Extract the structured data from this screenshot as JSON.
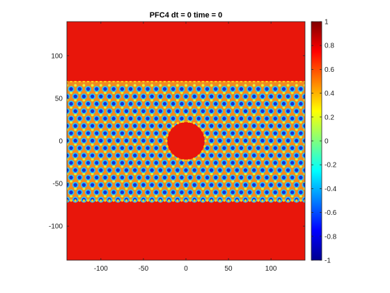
{
  "chart_data": {
    "type": "heatmap",
    "title": "PFC4   dt = 0   time = 0",
    "xlabel": "",
    "ylabel": "",
    "xlim": [
      -140,
      140
    ],
    "ylim": [
      -140,
      140
    ],
    "xticks": [
      -100,
      -50,
      0,
      50,
      100
    ],
    "yticks": [
      100,
      50,
      0,
      -50,
      -100
    ],
    "colorbar": {
      "limits": [
        -1,
        1
      ],
      "ticks": [
        "1",
        "0.8",
        "0.6",
        "0.4",
        "0.2",
        "0",
        "-0.2",
        "-0.4",
        "-0.6",
        "-0.8",
        "-1"
      ],
      "colormap": "jet"
    },
    "field": {
      "background_value": 0.9,
      "crystal_band_y": [
        -70,
        70
      ],
      "liquid_circle": {
        "center": [
          0,
          0
        ],
        "radius": 22
      },
      "lattice_spacing": 10,
      "row_spacing": 8.66,
      "peak_value": 1.0,
      "trough_value": -1.0
    }
  },
  "colors": {
    "background_red": "#e8160b",
    "frame": "#262626"
  }
}
